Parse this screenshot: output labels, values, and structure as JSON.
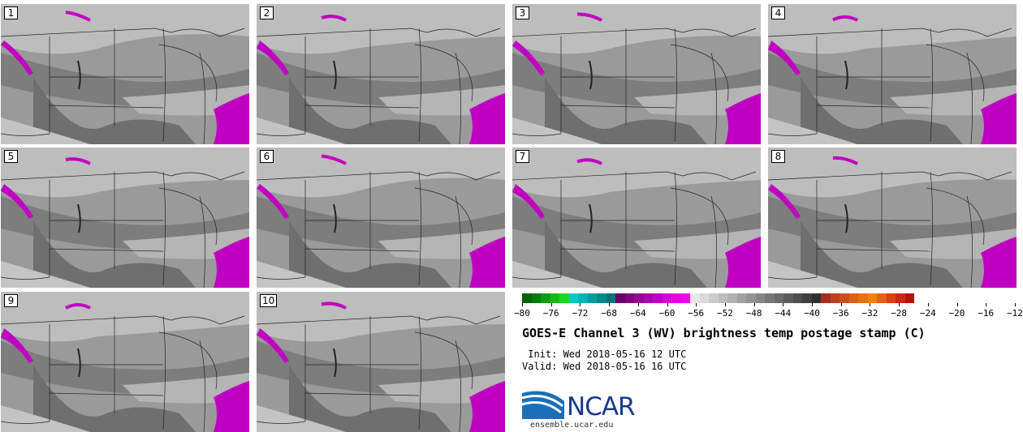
{
  "panels": [
    {
      "label": "1"
    },
    {
      "label": "2"
    },
    {
      "label": "3"
    },
    {
      "label": "4"
    },
    {
      "label": "5"
    },
    {
      "label": "6"
    },
    {
      "label": "7"
    },
    {
      "label": "8"
    },
    {
      "label": "9"
    },
    {
      "label": "10"
    }
  ],
  "colorbar": {
    "tick_labels": [
      "−80",
      "−76",
      "−72",
      "−68",
      "−64",
      "−60",
      "−56",
      "−52",
      "−48",
      "−44",
      "−40",
      "−36",
      "−32",
      "−28",
      "−24",
      "−20",
      "−16",
      "−12"
    ],
    "colors": [
      "#006400",
      "#0a7a0a",
      "#109a10",
      "#18b818",
      "#20d420",
      "#00c8c8",
      "#00b4b4",
      "#009e9e",
      "#008a8a",
      "#007474",
      "#6a006a",
      "#800080",
      "#960096",
      "#ac00ac",
      "#c200c2",
      "#d800d8",
      "#e600e6",
      "#f000f0",
      "#e8e8e8",
      "#dadada",
      "#cccccc",
      "#bebebe",
      "#b0b0b0",
      "#a2a2a2",
      "#949494",
      "#868686",
      "#787878",
      "#6a6a6a",
      "#5c5c5c",
      "#4e4e4e",
      "#404040",
      "#303030",
      "#a0301c",
      "#b8401c",
      "#c8501c",
      "#d86018",
      "#e87010",
      "#f08010",
      "#e86018",
      "#d84010",
      "#c82808",
      "#b81000"
    ]
  },
  "title": "GOES-E Channel 3 (WV) brightness temp postage stamp (C)",
  "init": " Init: Wed 2018-05-16 12 UTC",
  "valid": "Valid: Wed 2018-05-16 16 UTC",
  "logo": {
    "text": "NCAR",
    "site": "ensemble.ucar.edu"
  }
}
